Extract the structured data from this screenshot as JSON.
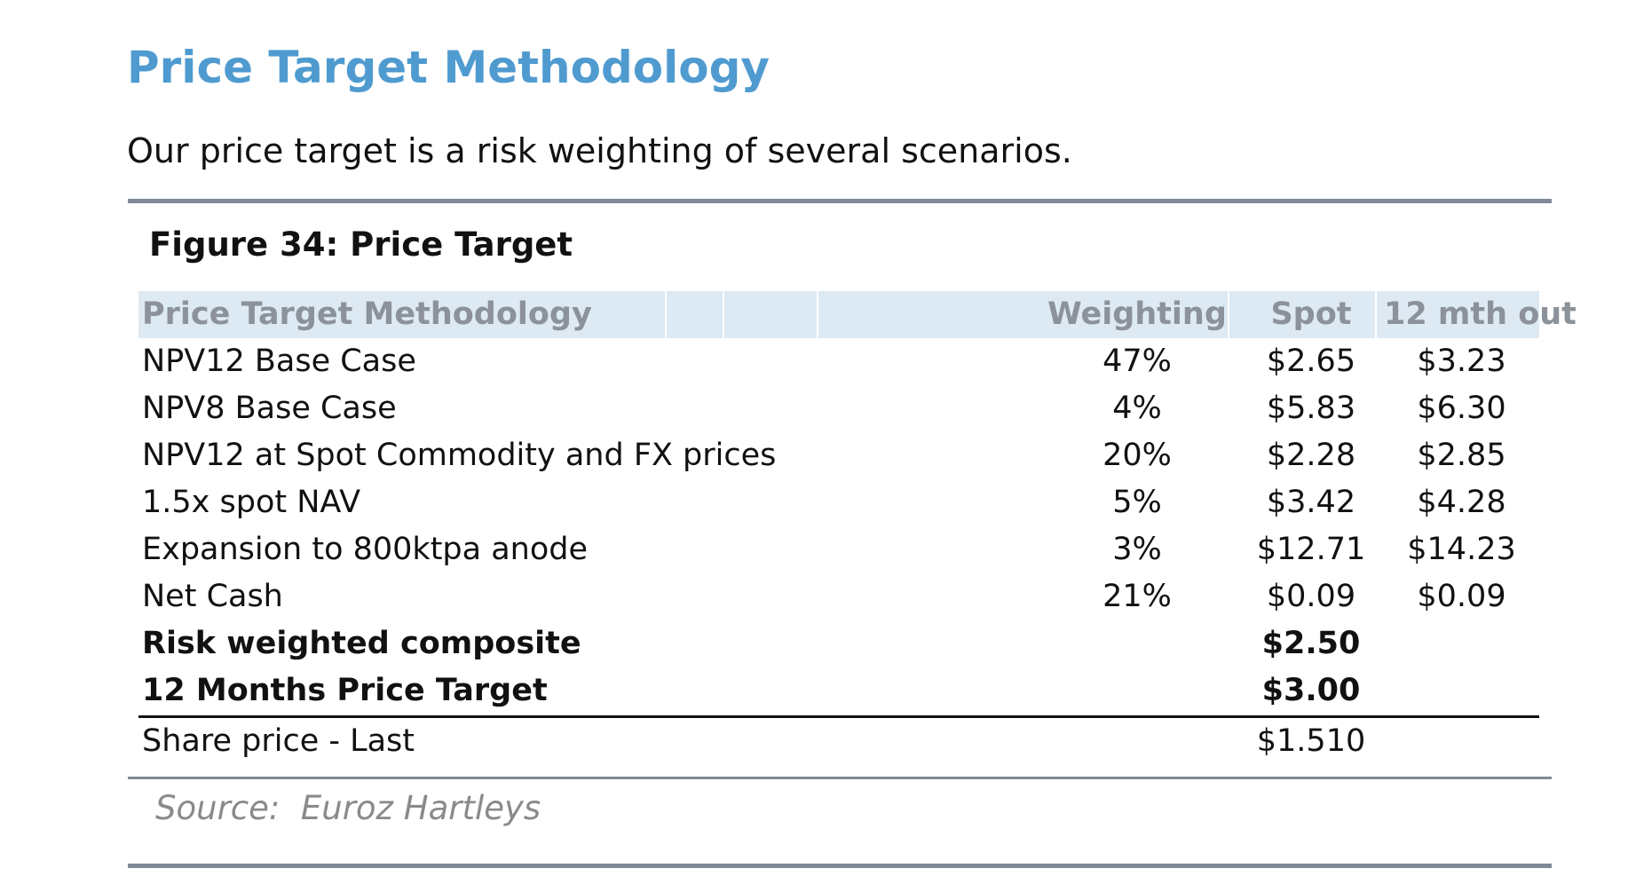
{
  "section_title": "Price Target Methodology",
  "intro_text": "Our price target is a risk weighting of several scenarios.",
  "figure_title": "Figure 34: Price Target",
  "table": {
    "headers": {
      "label": "Price Target Methodology",
      "weighting": "Weighting",
      "spot": "Spot",
      "out": "12 mth out"
    },
    "rows": [
      {
        "label": "NPV12 Base Case",
        "weighting": "47%",
        "spot": "$2.65",
        "out": "$3.23"
      },
      {
        "label": "NPV8 Base Case",
        "weighting": "4%",
        "spot": "$5.83",
        "out": "$6.30"
      },
      {
        "label": "NPV12 at Spot Commodity and FX prices",
        "weighting": "20%",
        "spot": "$2.28",
        "out": "$2.85"
      },
      {
        "label": "1.5x spot NAV",
        "weighting": "5%",
        "spot": "$3.42",
        "out": "$4.28"
      },
      {
        "label": "Expansion to 800ktpa anode",
        "weighting": "3%",
        "spot": "$12.71",
        "out": "$14.23"
      },
      {
        "label": "Net Cash",
        "weighting": "21%",
        "spot": "$0.09",
        "out": "$0.09"
      }
    ],
    "summary": [
      {
        "label": "Risk weighted composite",
        "spot": "$2.50"
      },
      {
        "label": "12 Months Price Target",
        "spot": "$3.00"
      }
    ],
    "last": {
      "label": "Share price - Last",
      "spot": "$1.510"
    }
  },
  "source": "Source:  Euroz Hartleys",
  "colors": {
    "title": "#4f9bd0",
    "header_bg": "#dde9f3",
    "header_text": "#8c9299",
    "rule": "#7f8a96"
  }
}
